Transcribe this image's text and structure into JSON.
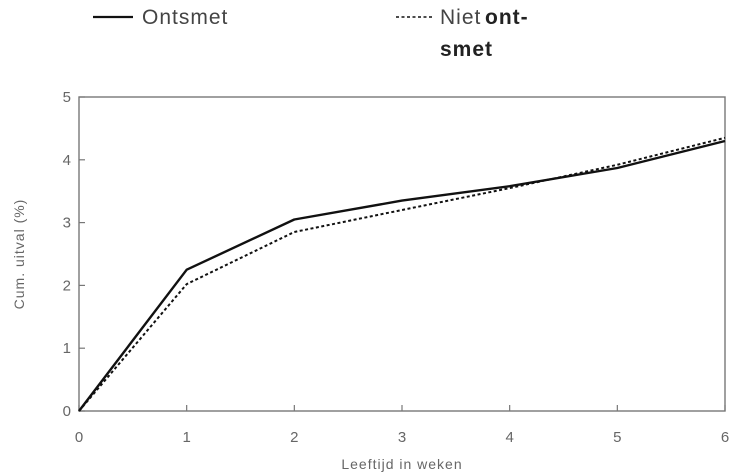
{
  "chart_data": {
    "type": "line",
    "title": "",
    "xlabel": "Leeftijd in weken",
    "ylabel": "Cum. uitval (%)",
    "xlim": [
      0,
      6
    ],
    "ylim": [
      0,
      5
    ],
    "xticks": [
      0,
      1,
      2,
      3,
      4,
      5,
      6
    ],
    "yticks": [
      0,
      1,
      2,
      3,
      4,
      5
    ],
    "grid": false,
    "legend_placement": "top",
    "series": [
      {
        "name": "Ontsmet",
        "legend_label": "Ontsmet",
        "style": "solid",
        "color": "#111111",
        "x": [
          0,
          1,
          2,
          3,
          4,
          5,
          6
        ],
        "y": [
          0,
          2.25,
          3.05,
          3.35,
          3.58,
          3.87,
          4.3
        ]
      },
      {
        "name": "Niet ontsmet",
        "legend_label_a": "Niet",
        "legend_label_b": "ont-",
        "legend_label_c": "smet",
        "style": "dashed",
        "color": "#111111",
        "x": [
          0,
          1,
          2,
          3,
          4,
          5,
          6
        ],
        "y": [
          0,
          2.02,
          2.85,
          3.2,
          3.55,
          3.92,
          4.35
        ]
      }
    ]
  }
}
